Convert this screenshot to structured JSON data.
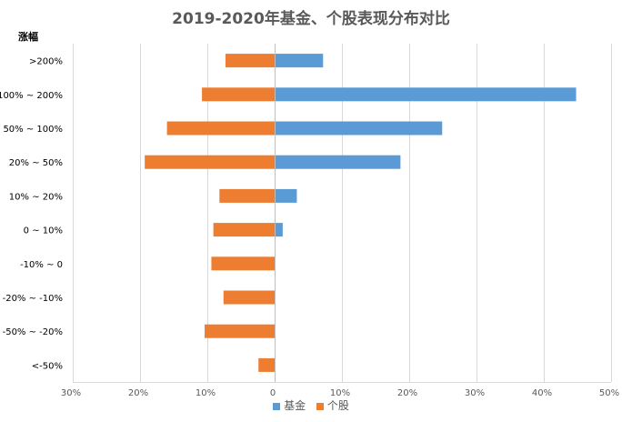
{
  "chart_data": {
    "type": "bar",
    "orientation": "horizontal",
    "title": "2019-2020年基金、个股表现分布对比",
    "ylabel": "涨幅",
    "xlabel": "",
    "categories": [
      ">200%",
      "100% ~ 200%",
      "50% ~ 100%",
      "20% ~ 50%",
      "10% ~ 20%",
      "0 ~ 10%",
      "-10% ~ 0",
      "-20% ~ -10%",
      "-50% ~ -20%",
      "<-50%"
    ],
    "series": [
      {
        "name": "基金",
        "color": "#5B9BD5",
        "values": [
          7.2,
          44.8,
          24.9,
          18.7,
          3.3,
          1.2,
          0,
          0,
          0,
          0
        ]
      },
      {
        "name": "个股",
        "color": "#ED7D31",
        "values": [
          -7.3,
          -10.8,
          -16.0,
          -19.3,
          -8.2,
          -9.1,
          -9.4,
          -7.6,
          -10.4,
          -2.4
        ]
      }
    ],
    "xlim": [
      -30,
      50
    ],
    "xticks": [
      -30,
      -20,
      -10,
      0,
      10,
      20,
      30,
      40,
      50
    ],
    "xtick_labels": [
      "30%",
      "20%",
      "10%",
      "0",
      "10%",
      "20%",
      "30%",
      "40%",
      "50%"
    ],
    "grid": "vertical",
    "legend_position": "bottom"
  }
}
